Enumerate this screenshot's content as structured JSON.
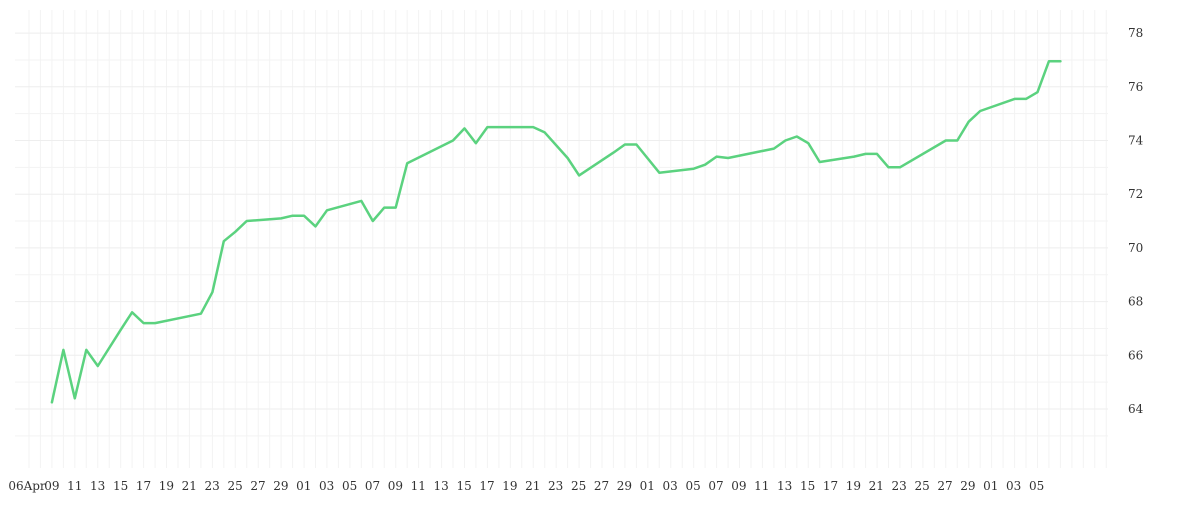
{
  "chart_data": {
    "type": "line",
    "title": "",
    "xlabel": "",
    "ylabel": "",
    "ylim": [
      62,
      78.6
    ],
    "y_ticks": [
      64,
      66,
      68,
      70,
      72,
      74,
      76,
      78
    ],
    "y_axis_side": "right",
    "grid": true,
    "line_color": "#5bd27f",
    "x_tick_labels": [
      "06Apr",
      "09",
      "11",
      "13",
      "15",
      "17",
      "19",
      "21",
      "23",
      "25",
      "27",
      "29",
      "01",
      "03",
      "05",
      "07",
      "09",
      "11",
      "13",
      "15",
      "17",
      "19",
      "21",
      "23",
      "25",
      "27",
      "29",
      "01",
      "03",
      "05",
      "07",
      "09",
      "11",
      "13",
      "15",
      "17",
      "19",
      "21",
      "23",
      "25",
      "27",
      "29",
      "01",
      "03",
      "05"
    ],
    "series": [
      {
        "values": [
          64.25,
          66.2,
          64.4,
          66.2,
          65.6,
          66.95,
          67.6,
          67.2,
          67.2,
          67.55,
          68.35,
          70.25,
          70.6,
          71.0,
          71.1,
          71.2,
          71.2,
          70.8,
          71.4,
          71.75,
          71.0,
          71.5,
          71.5,
          73.15,
          74.0,
          74.45,
          73.9,
          74.5,
          74.5,
          74.5,
          74.3,
          73.35,
          72.7,
          73.55,
          73.85,
          73.85,
          72.8,
          72.95,
          73.1,
          73.4,
          73.35,
          73.7,
          74.0,
          74.15,
          73.9,
          73.2,
          73.4,
          73.5,
          73.5,
          73.0,
          73.0,
          74.0,
          74.0,
          74.7,
          75.1,
          75.55,
          75.55,
          75.8,
          76.95,
          76.95
        ],
        "x": [
          "2020-04-08",
          "2020-04-09",
          "2020-04-10",
          "2020-04-11",
          "2020-04-12",
          "2020-04-14",
          "2020-04-15",
          "2020-04-16",
          "2020-04-17",
          "2020-04-21",
          "2020-04-22",
          "2020-04-23",
          "2020-04-24",
          "2020-04-25",
          "2020-04-28",
          "2020-04-29",
          "2020-04-30",
          "2020-05-01",
          "2020-05-02",
          "2020-05-05",
          "2020-05-06",
          "2020-05-07",
          "2020-05-08",
          "2020-05-09",
          "2020-05-13",
          "2020-05-14",
          "2020-05-15",
          "2020-05-16",
          "2020-05-19",
          "2020-05-20",
          "2020-05-21",
          "2020-05-23",
          "2020-05-24",
          "2020-05-27",
          "2020-05-28",
          "2020-05-29",
          "2020-05-31",
          "2020-06-03",
          "2020-06-04",
          "2020-06-05",
          "2020-06-06",
          "2020-06-10",
          "2020-06-11",
          "2020-06-12",
          "2020-06-13",
          "2020-06-14",
          "2020-06-17",
          "2020-06-18",
          "2020-06-19",
          "2020-06-20",
          "2020-06-21",
          "2020-06-25",
          "2020-06-26",
          "2020-06-27",
          "2020-06-28",
          "2020-07-01",
          "2020-07-02",
          "2020-07-03",
          "2020-07-04",
          "2020-07-05"
        ]
      }
    ]
  }
}
